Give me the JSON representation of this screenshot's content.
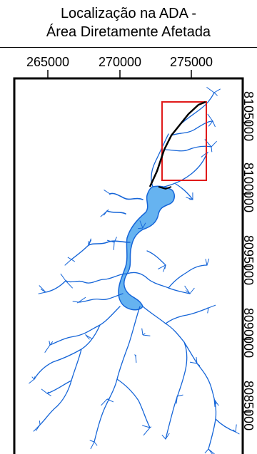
{
  "map": {
    "title_line1": "Localização na ADA -",
    "title_line2": "Área Diretamente Afetada",
    "x_ticks": [
      "265000",
      "270000",
      "275000"
    ],
    "y_ticks": [
      "8105000",
      "8100000",
      "8095000",
      "8090000",
      "8085000"
    ],
    "colors": {
      "water_fill": "#66b3f0",
      "water_stroke": "#1565d8",
      "highlight_box": "#e01a1a",
      "line_feature": "#000000"
    }
  }
}
